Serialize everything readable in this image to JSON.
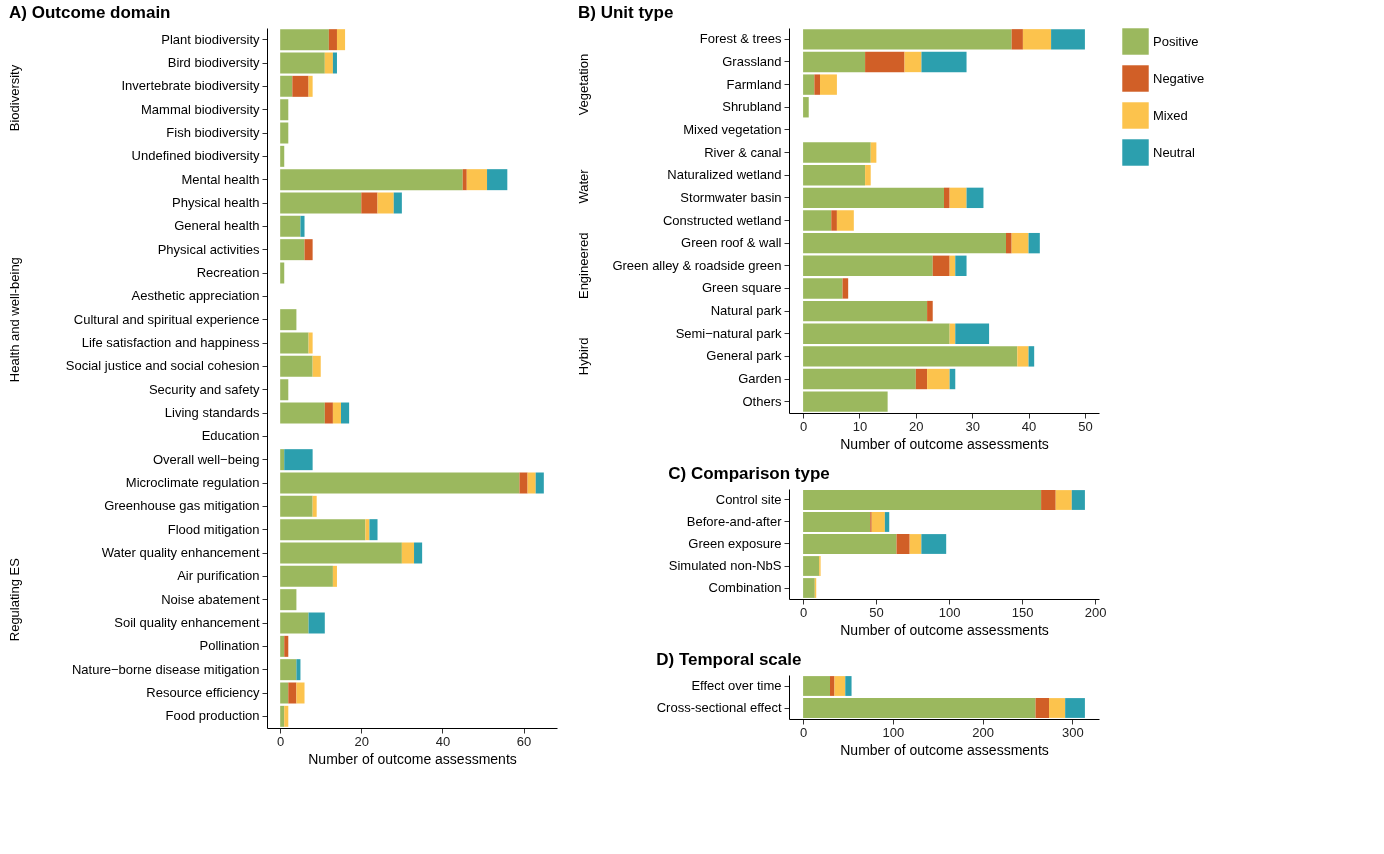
{
  "chart_data": [
    {
      "type": "bar",
      "orientation": "horizontal",
      "stacked": true,
      "title": "A) Outcome domain",
      "xlabel": "Number of outcome assessments",
      "categories": [
        "Plant biodiversity",
        "Bird biodiversity",
        "Invertebrate biodiversity",
        "Mammal biodiversity",
        "Fish biodiversity",
        "Undefined biodiversity",
        "Mental health",
        "Physical health",
        "General health",
        "Physical activities",
        "Recreation",
        "Aesthetic appreciation",
        "Cultural and spiritual experience",
        "Life satisfaction and happiness",
        "Social justice and social cohesion",
        "Security and safety",
        "Living standards",
        "Education",
        "Overall well−being",
        "Microclimate regulation",
        "Greenhouse gas mitigation",
        "Flood mitigation",
        "Water quality enhancement",
        "Air purification",
        "Noise abatement",
        "Soil quality enhancement",
        "Pollination",
        "Nature−borne disease mitigation",
        "Resource efficiency",
        "Food production"
      ],
      "series": [
        {
          "name": "Positive",
          "color": "#9bb85e",
          "values": [
            12,
            11,
            3,
            2,
            2,
            1,
            45,
            20,
            5,
            6,
            1,
            0,
            4,
            7,
            8,
            2,
            11,
            0,
            1,
            59,
            8,
            21,
            30,
            13,
            4,
            7,
            1,
            4,
            2,
            1
          ]
        },
        {
          "name": "Negative",
          "color": "#d15f27",
          "values": [
            2,
            0,
            4,
            0,
            0,
            0,
            1,
            4,
            0,
            2,
            0,
            0,
            0,
            0,
            0,
            0,
            2,
            0,
            0,
            2,
            0,
            0,
            0,
            0,
            0,
            0,
            1,
            0,
            2,
            0
          ]
        },
        {
          "name": "Mixed",
          "color": "#fcc34d",
          "values": [
            2,
            2,
            1,
            0,
            0,
            0,
            5,
            4,
            0,
            0,
            0,
            0,
            0,
            1,
            2,
            0,
            2,
            0,
            0,
            2,
            1,
            1,
            3,
            1,
            0,
            0,
            0,
            0,
            2,
            1
          ]
        },
        {
          "name": "Neutral",
          "color": "#2c9fae",
          "values": [
            0,
            1,
            0,
            0,
            0,
            0,
            5,
            2,
            1,
            0,
            0,
            0,
            0,
            0,
            0,
            0,
            2,
            0,
            7,
            2,
            0,
            2,
            2,
            0,
            0,
            4,
            0,
            1,
            0,
            0
          ]
        }
      ],
      "xlim": [
        -3.25,
        68.25
      ],
      "xticks": [
        0,
        20,
        40,
        60
      ],
      "legend": "right",
      "annotations": [
        "Biodiversity",
        "Health and well-being",
        "Regulating ES"
      ]
    },
    {
      "type": "bar",
      "orientation": "horizontal",
      "stacked": true,
      "title": "B) Unit type",
      "xlabel": "Number of outcome assessments",
      "legend": "right",
      "categories": [
        "Forest & trees",
        "Grassland",
        "Farmland",
        "Shrubland",
        "Mixed vegetation",
        "River & canal",
        "Naturalized wetland",
        "Stormwater basin",
        "Constructed wetland",
        "Green roof & wall",
        "Green alley & roadside green",
        "Green square",
        "Natural park",
        "Semi−natural park",
        "General park",
        "Garden",
        "Others"
      ],
      "series": [
        {
          "name": "Positive",
          "color": "#9bb85e",
          "values": [
            37,
            11,
            2,
            1,
            0,
            12,
            11,
            25,
            5,
            36,
            23,
            7,
            22,
            26,
            38,
            20,
            15
          ]
        },
        {
          "name": "Negative",
          "color": "#d15f27",
          "values": [
            2,
            7,
            1,
            0,
            0,
            0,
            0,
            1,
            1,
            1,
            3,
            1,
            1,
            0,
            0,
            2,
            0
          ]
        },
        {
          "name": "Mixed",
          "color": "#fcc34d",
          "values": [
            5,
            3,
            3,
            0,
            0,
            1,
            1,
            3,
            3,
            3,
            1,
            0,
            0,
            1,
            2,
            4,
            0
          ]
        },
        {
          "name": "Neutral",
          "color": "#2c9fae",
          "values": [
            6,
            8,
            0,
            0,
            0,
            0,
            0,
            3,
            0,
            2,
            2,
            0,
            0,
            6,
            1,
            1,
            0
          ]
        }
      ],
      "xlim": [
        -2.5,
        52.5
      ],
      "xticks": [
        0,
        10,
        20,
        30,
        40,
        50
      ],
      "annotations": [
        "Vegetation",
        "Water",
        "Engineered",
        "Hybird"
      ]
    },
    {
      "type": "bar",
      "orientation": "horizontal",
      "stacked": true,
      "title": "C) Comparison type",
      "xlabel": "Number of outcome assessments",
      "legend": "right",
      "categories": [
        "Control site",
        "Before-and-after",
        "Green exposure",
        "Simulated non-NbS",
        "Combination"
      ],
      "series": [
        {
          "name": "Positive",
          "color": "#9bb85e",
          "values": [
            163,
            46,
            64,
            11,
            8
          ]
        },
        {
          "name": "Negative",
          "color": "#d15f27",
          "values": [
            10,
            1,
            9,
            0,
            0
          ]
        },
        {
          "name": "Mixed",
          "color": "#fcc34d",
          "values": [
            11,
            9,
            8,
            1,
            1
          ]
        },
        {
          "name": "Neutral",
          "color": "#2c9fae",
          "values": [
            9,
            3,
            17,
            0,
            0
          ]
        }
      ],
      "xlim": [
        -9.65,
        202.65
      ],
      "xticks": [
        0,
        50,
        100,
        150,
        200
      ]
    },
    {
      "type": "bar",
      "orientation": "horizontal",
      "stacked": true,
      "title": "D) Temporal scale",
      "xlabel": "Number of outcome assessments",
      "legend": "right",
      "categories": [
        "Effect over time",
        "Cross-sectional effect"
      ],
      "series": [
        {
          "name": "Positive",
          "color": "#9bb85e",
          "values": [
            30,
            259
          ]
        },
        {
          "name": "Negative",
          "color": "#d15f27",
          "values": [
            5,
            15
          ]
        },
        {
          "name": "Mixed",
          "color": "#fcc34d",
          "values": [
            12,
            18
          ]
        },
        {
          "name": "Neutral",
          "color": "#2c9fae",
          "values": [
            7,
            22
          ]
        }
      ],
      "xlim": [
        -15.7,
        329.7
      ],
      "xticks": [
        0,
        100,
        200,
        300
      ]
    }
  ]
}
